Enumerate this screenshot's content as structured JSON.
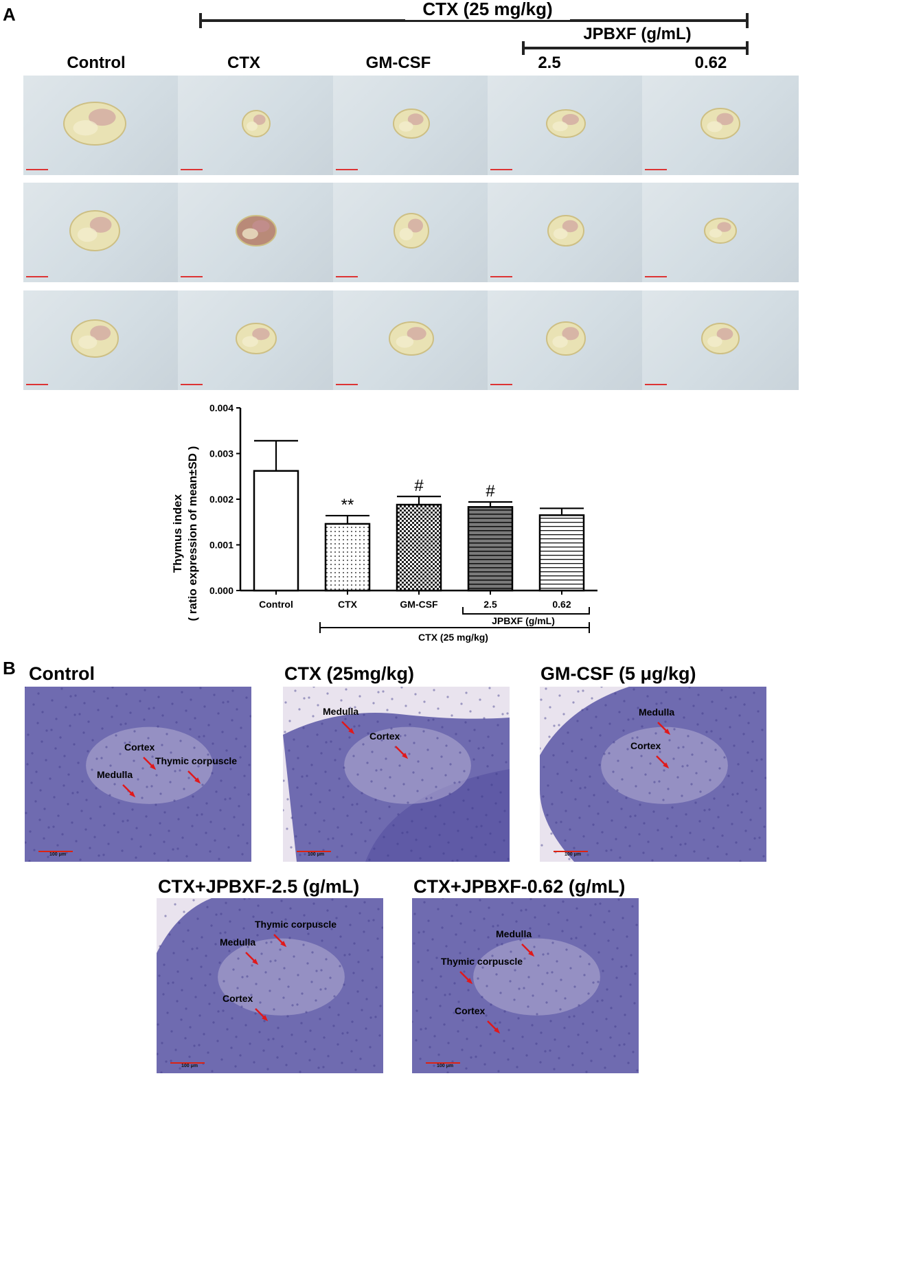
{
  "panel_a": {
    "letter": "A",
    "top_bracket": "CTX (25 mg/kg)",
    "sub_bracket": "JPBXF (g/mL)",
    "columns": [
      "Control",
      "CTX",
      "GM-CSF",
      "2.5",
      "0.62"
    ]
  },
  "chart_data": {
    "type": "bar",
    "categories": [
      "Control",
      "CTX",
      "GM-CSF",
      "2.5",
      "0.62"
    ],
    "values": [
      0.00262,
      0.00146,
      0.00188,
      0.00183,
      0.00165
    ],
    "errors": [
      0.00066,
      0.00018,
      0.00018,
      0.00011,
      0.00015
    ],
    "significance": [
      "",
      "**",
      "#",
      "#",
      ""
    ],
    "ylim": [
      0,
      0.004
    ],
    "yticks": [
      "0.000",
      "0.001",
      "0.002",
      "0.003",
      "0.004"
    ],
    "ylabel_line1": "Thymus index",
    "ylabel_line2": "( ratio expression of mean±SD )",
    "xlabel": "",
    "title": "",
    "group_labels": {
      "jpbxf": "JPBXF (g/mL)",
      "ctx": "CTX (25 mg/kg)"
    },
    "patterns": [
      "white",
      "dots",
      "checker",
      "dark-hlines",
      "hlines"
    ]
  },
  "panel_b": {
    "letter": "B",
    "images": [
      {
        "title": "Control",
        "labels": [
          "Cortex",
          "Medulla",
          "Thymic corpuscle"
        ]
      },
      {
        "title": "CTX (25mg/kg)",
        "labels": [
          "Medulla",
          "Cortex"
        ]
      },
      {
        "title": "GM-CSF (5 μg/kg)",
        "labels": [
          "Medulla",
          "Cortex"
        ]
      },
      {
        "title": "CTX+JPBXF-2.5 (g/mL)",
        "labels": [
          "Thymic corpuscle",
          "Medulla",
          "Cortex"
        ]
      },
      {
        "title": "CTX+JPBXF-0.62 (g/mL)",
        "labels": [
          "Thymic corpuscle",
          "Medulla",
          "Cortex"
        ]
      }
    ],
    "scale_bar": "100 μm",
    "colors": {
      "tissue": "#6f6bb0",
      "background": "#e9e3ee",
      "arrow": "#e0191b"
    }
  }
}
